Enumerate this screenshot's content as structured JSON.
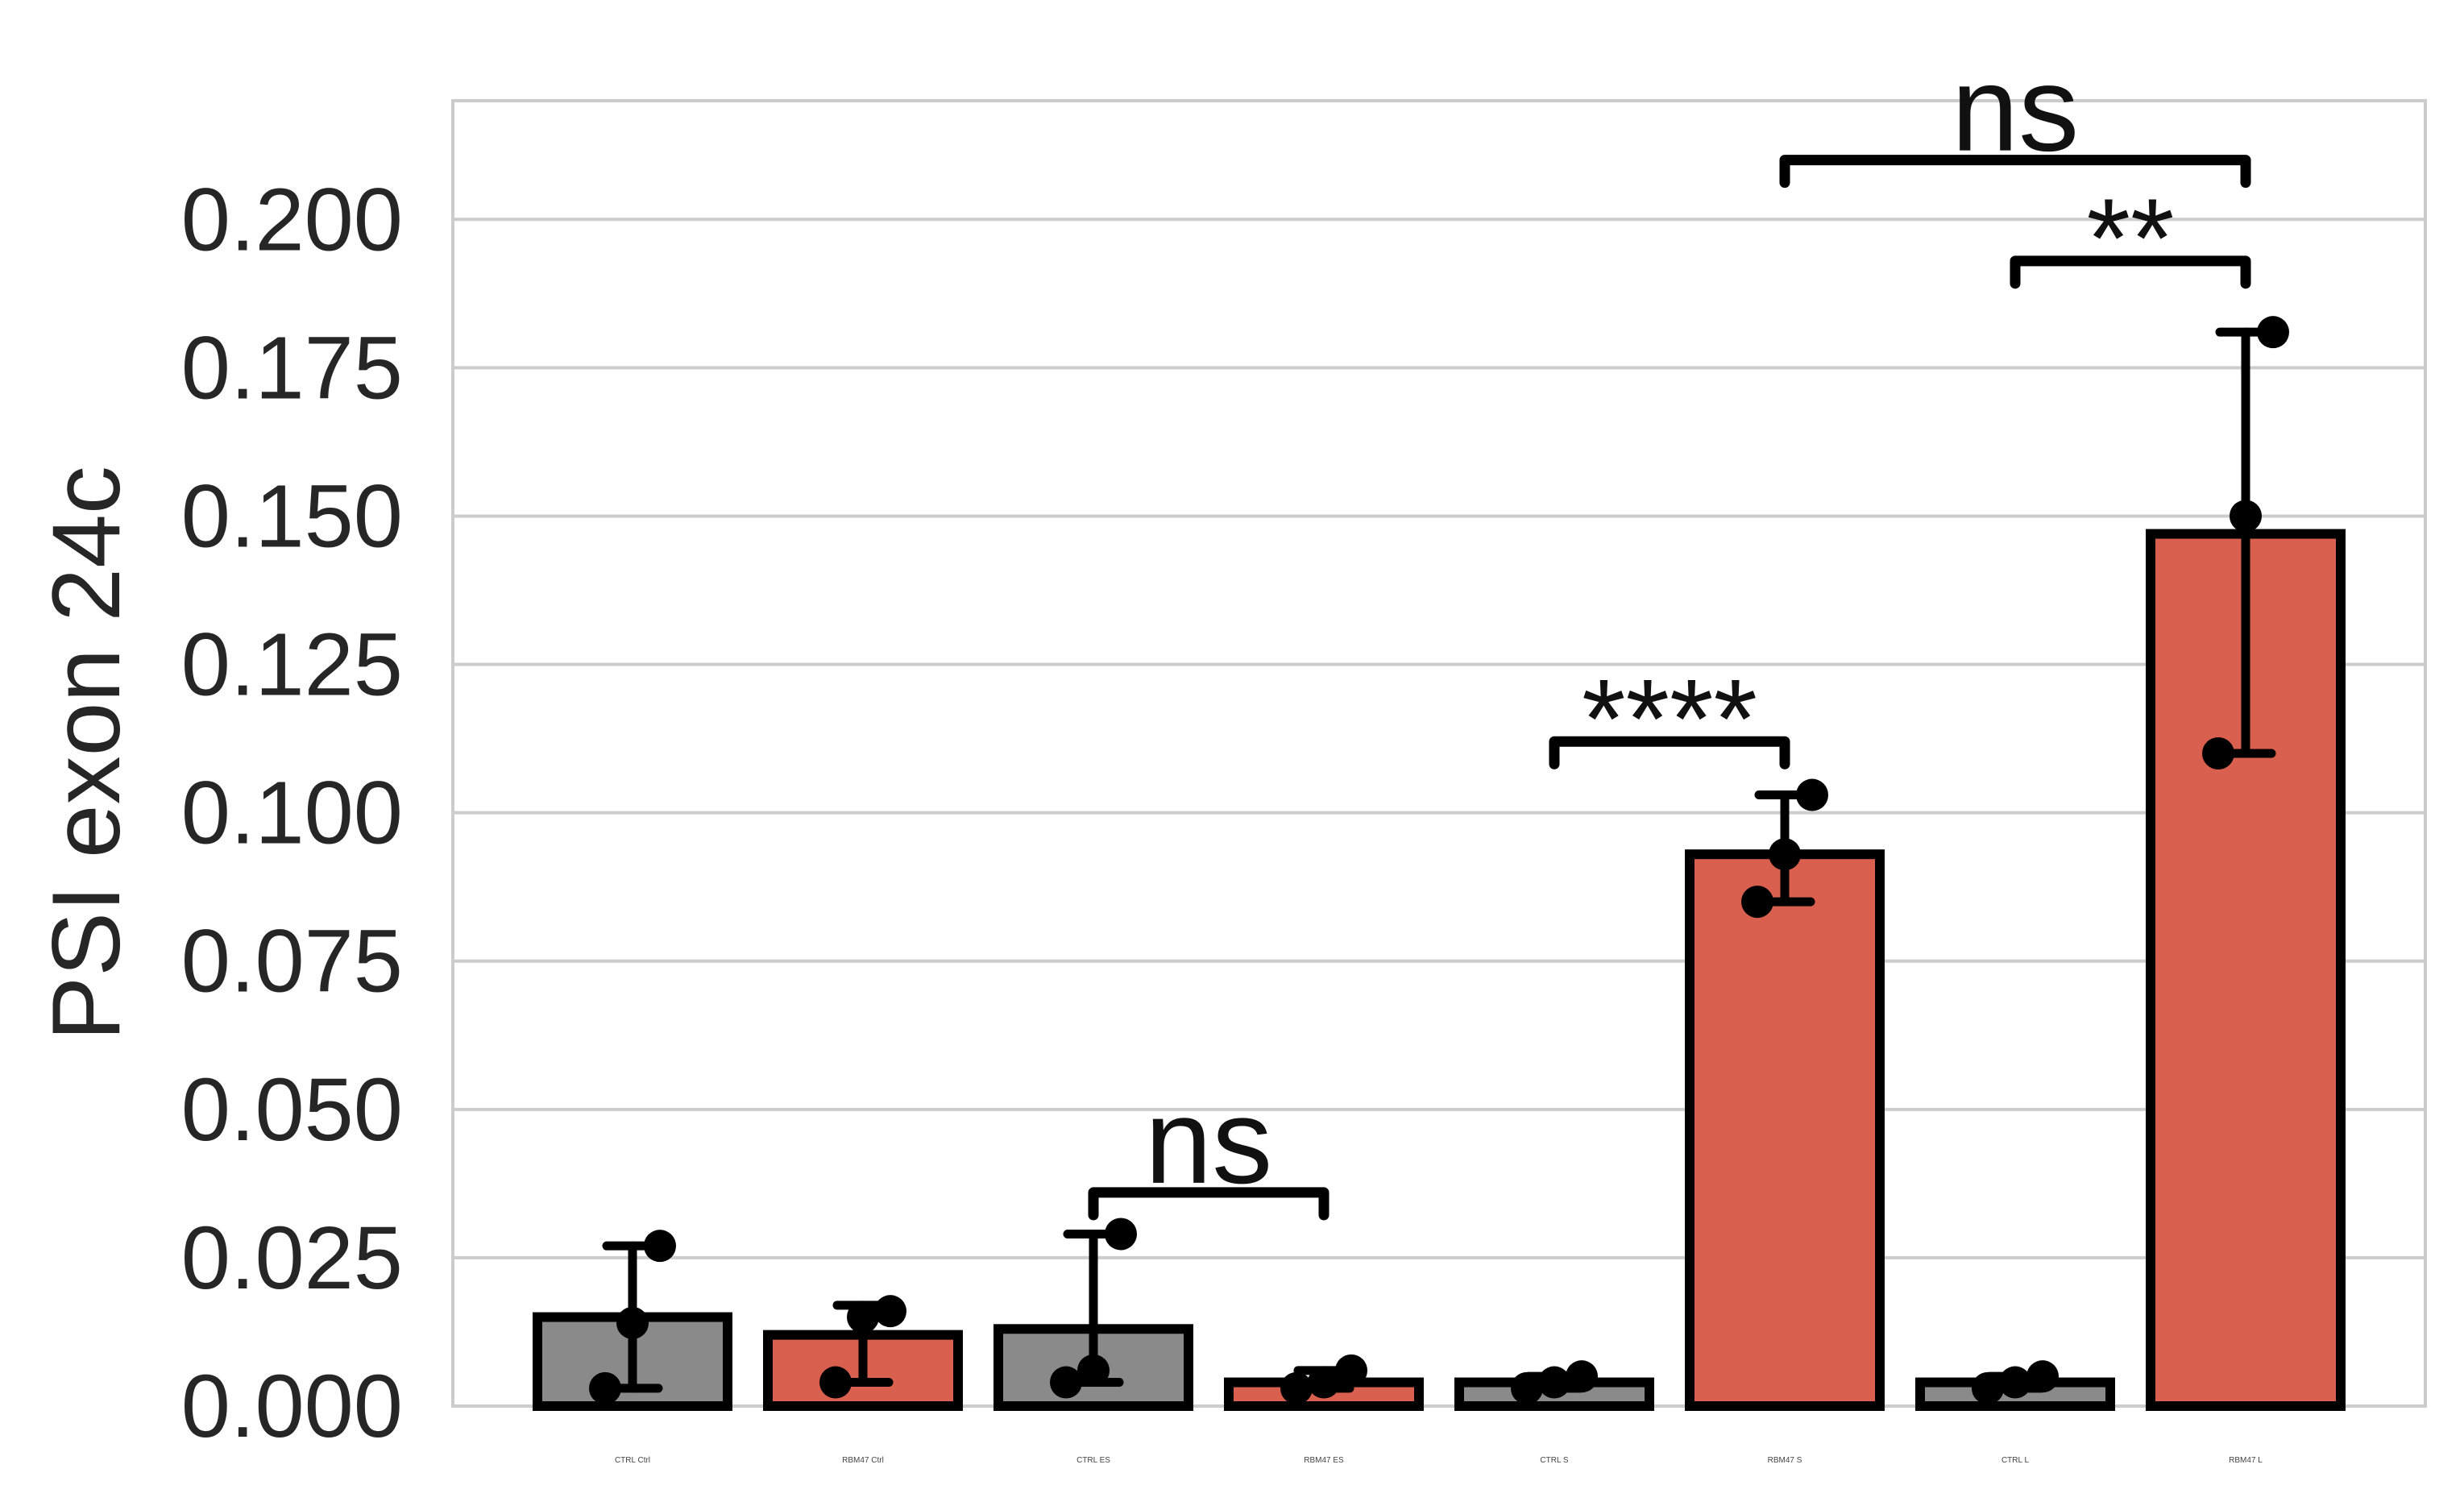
{
  "chart_data": {
    "type": "bar",
    "ylabel": "PSI exon 24c",
    "xlabel": "",
    "ylim": [
      0,
      0.22
    ],
    "yticks": [
      0.0,
      0.025,
      0.05,
      0.075,
      0.1,
      0.125,
      0.15,
      0.175,
      0.2
    ],
    "ytick_labels": [
      "0.000",
      "0.025",
      "0.050",
      "0.075",
      "0.100",
      "0.125",
      "0.150",
      "0.175",
      "0.200"
    ],
    "grid": true,
    "categories": [
      "CTRL Ctrl",
      "RBM47 Ctrl",
      "CTRL ES",
      "RBM47 ES",
      "CTRL S",
      "RBM47 S",
      "CTRL L",
      "RBM47 L"
    ],
    "values": [
      0.015,
      0.012,
      0.013,
      0.004,
      0.004,
      0.093,
      0.004,
      0.147
    ],
    "error_low": [
      0.003,
      0.004,
      0.004,
      0.003,
      0.003,
      0.085,
      0.003,
      0.11
    ],
    "error_high": [
      0.027,
      0.017,
      0.029,
      0.006,
      0.005,
      0.103,
      0.005,
      0.181
    ],
    "points": [
      [
        0.003,
        0.014,
        0.027
      ],
      [
        0.004,
        0.015,
        0.016
      ],
      [
        0.004,
        0.006,
        0.029
      ],
      [
        0.003,
        0.004,
        0.006
      ],
      [
        0.003,
        0.004,
        0.005
      ],
      [
        0.085,
        0.093,
        0.103
      ],
      [
        0.003,
        0.004,
        0.005
      ],
      [
        0.11,
        0.15,
        0.181
      ]
    ],
    "bar_colors": [
      "#8a8a8a",
      "#d95f4e",
      "#8a8a8a",
      "#d95f4e",
      "#8a8a8a",
      "#d95f4e",
      "#8a8a8a",
      "#d95f4e"
    ],
    "significance": [
      {
        "from": 2,
        "to": 3,
        "label": "ns",
        "y": 0.036
      },
      {
        "from": 4,
        "to": 5,
        "label": "****",
        "y": 0.112
      },
      {
        "from": 6,
        "to": 7,
        "label": "**",
        "y": 0.193
      },
      {
        "from": 5,
        "to": 7,
        "label": "ns",
        "y": 0.21
      }
    ]
  }
}
